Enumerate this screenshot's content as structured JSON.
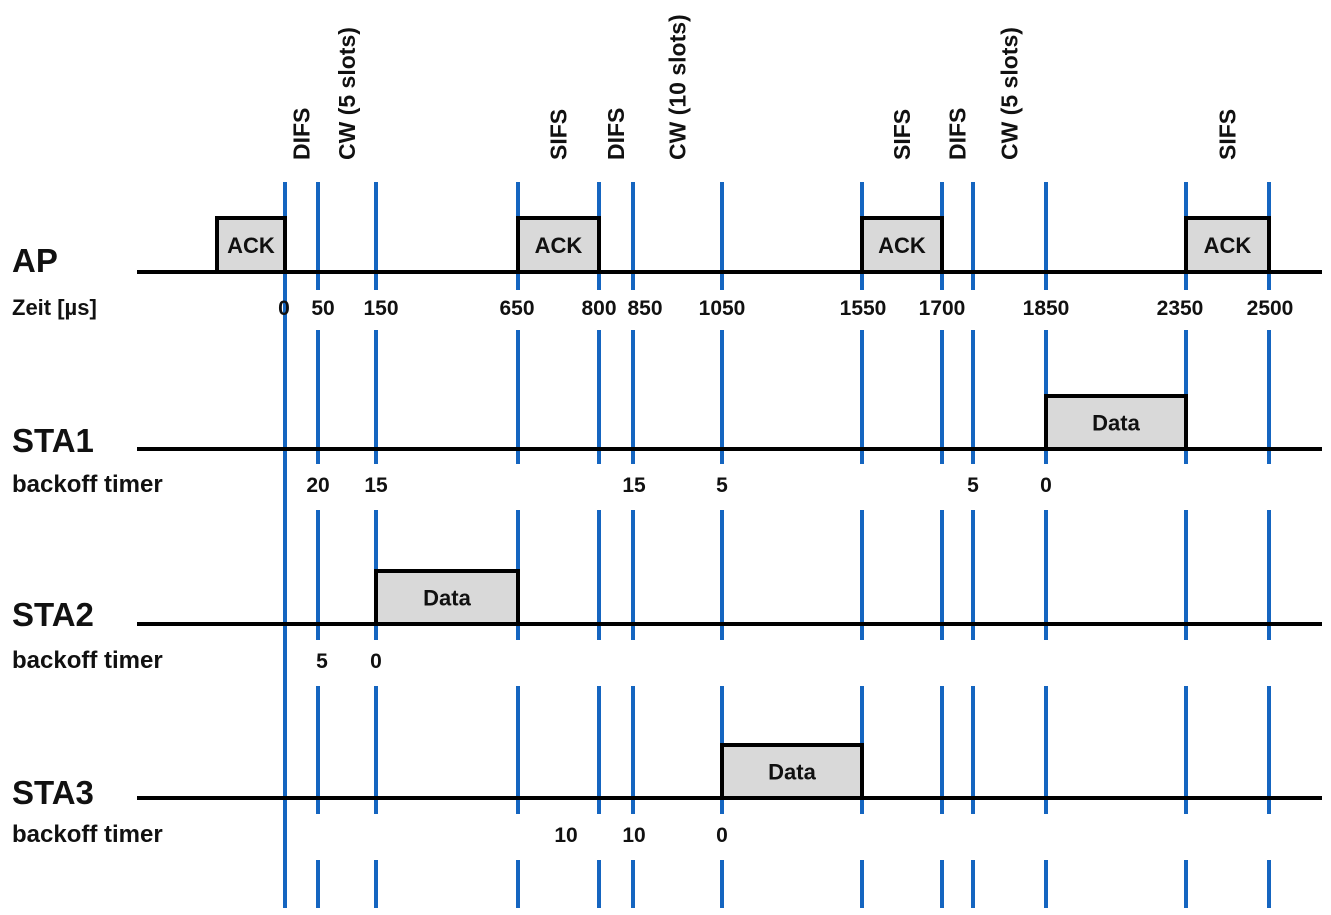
{
  "colors": {
    "line": "#1565C0",
    "frame_fill": "#D9D9D9",
    "frame_border": "#000000",
    "axis": "#000000"
  },
  "interval_labels": [
    {
      "text": "DIFS",
      "between": [
        0,
        50
      ]
    },
    {
      "text": "CW (5 slots)",
      "between": [
        50,
        150
      ]
    },
    {
      "text": "SIFS",
      "between": [
        650,
        800
      ]
    },
    {
      "text": "DIFS",
      "between": [
        800,
        850
      ]
    },
    {
      "text": "CW (10 slots)",
      "between": [
        850,
        1050
      ]
    },
    {
      "text": "SIFS",
      "between": [
        1550,
        1700
      ]
    },
    {
      "text": "DIFS",
      "between": [
        1700,
        1750
      ]
    },
    {
      "text": "CW (5 slots)",
      "between": [
        1750,
        1850
      ]
    },
    {
      "text": "SIFS",
      "between": [
        2350,
        2500
      ]
    }
  ],
  "time_axis": {
    "label": "Zeit [µs]",
    "ticks": [
      "0",
      "50",
      "150",
      "650",
      "800",
      "850",
      "1050",
      "1550",
      "1700",
      "1850",
      "2350",
      "2500"
    ]
  },
  "boundaries_us": [
    0,
    50,
    150,
    650,
    800,
    850,
    1050,
    1550,
    1700,
    1750,
    1850,
    2350,
    2500
  ],
  "rows": [
    {
      "id": "ap",
      "label": "AP",
      "frames": [
        {
          "label": "ACK",
          "start": -150,
          "end": 0
        },
        {
          "label": "ACK",
          "start": 650,
          "end": 800
        },
        {
          "label": "ACK",
          "start": 1550,
          "end": 1700
        },
        {
          "label": "ACK",
          "start": 2350,
          "end": 2500
        }
      ]
    },
    {
      "id": "sta1",
      "label": "STA1",
      "frames": [
        {
          "label": "Data",
          "start": 1850,
          "end": 2350
        }
      ],
      "backoff_label": "backoff timer",
      "backoff": [
        {
          "value": "20",
          "at": 50
        },
        {
          "value": "15",
          "at": 150
        },
        {
          "value": "15",
          "at": 850
        },
        {
          "value": "5",
          "at": 1050
        },
        {
          "value": "5",
          "at": 1750
        },
        {
          "value": "0",
          "at": 1850
        }
      ]
    },
    {
      "id": "sta2",
      "label": "STA2",
      "frames": [
        {
          "label": "Data",
          "start": 150,
          "end": 650
        }
      ],
      "backoff_label": "backoff timer",
      "backoff": [
        {
          "value": "5",
          "at": 50
        },
        {
          "value": "0",
          "at": 150
        }
      ]
    },
    {
      "id": "sta3",
      "label": "STA3",
      "frames": [
        {
          "label": "Data",
          "start": 1050,
          "end": 1550
        }
      ],
      "backoff_label": "backoff timer",
      "backoff": [
        {
          "value": "10",
          "at": 700
        },
        {
          "value": "10",
          "at": 850
        },
        {
          "value": "0",
          "at": 1050
        }
      ]
    }
  ]
}
